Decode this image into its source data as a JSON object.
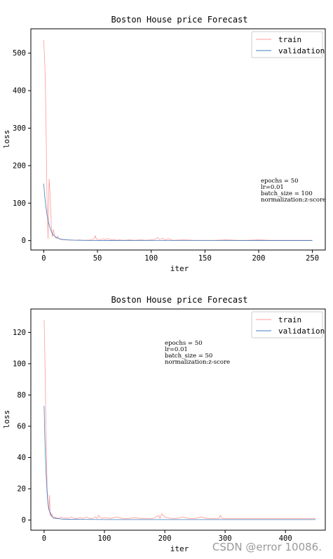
{
  "chart_data": [
    {
      "type": "line",
      "title": "Boston House price Forecast",
      "xlabel": "iter",
      "ylabel": "loss",
      "xlim": [
        -12,
        262
      ],
      "ylim": [
        -25,
        565
      ],
      "xticks": [
        0,
        50,
        100,
        150,
        200,
        250
      ],
      "yticks": [
        0,
        100,
        200,
        300,
        400,
        500
      ],
      "grid": false,
      "legend_position": "top-right",
      "annotation": [
        "epochs = 50",
        "lr=0.01",
        "batch_size = 100",
        "normalization:z-score"
      ],
      "series": [
        {
          "name": "train",
          "color": "#ff9999",
          "x": [
            0,
            1,
            2,
            3,
            4,
            5,
            6,
            7,
            8,
            9,
            10,
            11,
            12,
            13,
            14,
            15,
            16,
            17,
            18,
            19,
            20,
            22,
            24,
            26,
            28,
            30,
            33,
            36,
            40,
            44,
            47,
            48,
            49,
            52,
            55,
            58,
            60,
            62,
            65,
            68,
            70,
            75,
            80,
            85,
            90,
            95,
            100,
            104,
            106,
            108,
            110,
            113,
            116,
            120,
            130,
            140,
            150,
            160,
            170,
            180,
            190,
            200,
            210,
            220,
            230,
            240,
            250
          ],
          "y": [
            535,
            470,
            340,
            120,
            5,
            165,
            120,
            40,
            10,
            30,
            15,
            8,
            6,
            12,
            5,
            4,
            3,
            3,
            2,
            3,
            2,
            2,
            1,
            2,
            1,
            1,
            2,
            1,
            1,
            2,
            5,
            13,
            4,
            2,
            5,
            3,
            6,
            2,
            3,
            1,
            2,
            1,
            2,
            1,
            2,
            1,
            2,
            4,
            8,
            3,
            6,
            2,
            5,
            1,
            2,
            1,
            1,
            1,
            2,
            1,
            1,
            2,
            1,
            1,
            1,
            1,
            1
          ]
        },
        {
          "name": "validation",
          "color": "#3f7fbf",
          "x": [
            0,
            1,
            2,
            3,
            4,
            5,
            6,
            7,
            8,
            10,
            12,
            14,
            16,
            18,
            20,
            25,
            30,
            40,
            60,
            100,
            150,
            200,
            250
          ],
          "y": [
            152,
            115,
            90,
            70,
            55,
            43,
            33,
            25,
            19,
            12,
            8,
            6,
            4,
            3,
            2.5,
            1.5,
            1,
            0.6,
            0.4,
            0.3,
            0.3,
            0.2,
            0.2
          ]
        }
      ]
    },
    {
      "type": "line",
      "title": "Boston House price Forecast",
      "xlabel": "iter",
      "ylabel": "loss",
      "xlim": [
        -22,
        466
      ],
      "ylim": [
        -6.5,
        135
      ],
      "xticks": [
        0,
        100,
        200,
        300,
        400
      ],
      "yticks": [
        0,
        20,
        40,
        60,
        80,
        100,
        120
      ],
      "grid": false,
      "legend_position": "top-right",
      "annotation": [
        "epochs = 50",
        "lr=0.01",
        "batch_size = 50",
        "normalization:z-score"
      ],
      "series": [
        {
          "name": "train",
          "color": "#ff9999",
          "x": [
            0,
            1,
            2,
            3,
            4,
            5,
            6,
            7,
            8,
            9,
            10,
            11,
            12,
            13,
            14,
            15,
            16,
            17,
            18,
            19,
            20,
            22,
            25,
            28,
            32,
            36,
            40,
            45,
            50,
            55,
            60,
            65,
            70,
            75,
            80,
            85,
            88,
            90,
            95,
            100,
            110,
            120,
            130,
            140,
            150,
            160,
            170,
            180,
            185,
            190,
            192,
            195,
            200,
            210,
            220,
            230,
            240,
            250,
            260,
            270,
            280,
            290,
            292,
            295,
            300,
            320,
            340,
            360,
            380,
            400,
            420,
            440,
            450
          ],
          "y": [
            128,
            110,
            85,
            60,
            40,
            20,
            15,
            8,
            6,
            16,
            3,
            5,
            2,
            4,
            1.5,
            2,
            1,
            1.5,
            1,
            2,
            1,
            1.5,
            1,
            2,
            1,
            1.5,
            1,
            2,
            1,
            1,
            1.5,
            1,
            2,
            1,
            1,
            2,
            1,
            3,
            1,
            1.5,
            1,
            2,
            1,
            1,
            1.5,
            1,
            1,
            1,
            2,
            3,
            1,
            4,
            2,
            1,
            1,
            2,
            1,
            1,
            2,
            1,
            1,
            1,
            3,
            1,
            1,
            1,
            1,
            1,
            1,
            1,
            1,
            1,
            1
          ]
        },
        {
          "name": "validation",
          "color": "#3f7fbf",
          "x": [
            0,
            1,
            2,
            3,
            4,
            5,
            6,
            7,
            8,
            10,
            12,
            14,
            16,
            18,
            20,
            25,
            30,
            40,
            60,
            100,
            200,
            300,
            400,
            450
          ],
          "y": [
            73,
            55,
            42,
            32,
            24,
            17,
            12,
            9,
            7,
            4,
            3,
            2,
            1.5,
            1.2,
            1,
            0.8,
            0.6,
            0.5,
            0.4,
            0.3,
            0.3,
            0.3,
            0.3,
            0.3
          ]
        }
      ]
    }
  ],
  "watermark": "CSDN @error 10086."
}
